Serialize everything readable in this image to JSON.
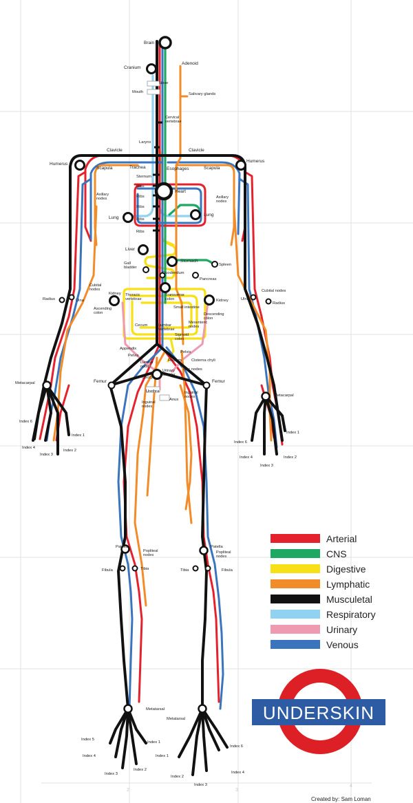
{
  "colors": {
    "arterial": "#e4222d",
    "cns": "#1ea862",
    "digestive": "#f7e017",
    "lymphatic": "#f28c28",
    "muscuskeletal": "#111111",
    "respiratory": "#8fd3f1",
    "urinary": "#ee9ab0",
    "venous": "#3a74bd",
    "roundel_ring": "#dd1f26",
    "roundel_bar": "#2d5ca5"
  },
  "legend": [
    {
      "label": "Arterial",
      "color": "#e4222d"
    },
    {
      "label": "CNS",
      "color": "#1ea862"
    },
    {
      "label": "Digestive",
      "color": "#f7e017"
    },
    {
      "label": "Lymphatic",
      "color": "#f28c28"
    },
    {
      "label": "Musculetal",
      "color": "#111111"
    },
    {
      "label": "Respiratory",
      "color": "#8fd3f1"
    },
    {
      "label": "Urinary",
      "color": "#ee9ab0"
    },
    {
      "label": "Venous",
      "color": "#3a74bd"
    }
  ],
  "logo": {
    "text": "UNDERSKIN"
  },
  "credit": "Created by: Sam Loman",
  "grid_numbers": [
    "2",
    "3",
    "4"
  ],
  "labels": {
    "brain": "Brain",
    "cranium": "Cranium",
    "adenoid": "Adenoid",
    "nose": "Nose",
    "mouth": "Mouth",
    "salivary": "Salivary glands",
    "cervical": "Cervical vertebrae",
    "larynx": "Larynx",
    "clavicle_l": "Clavicle",
    "clavicle_r": "Clavicle",
    "humerus_l": "Humerus",
    "humerus_r": "Humerus",
    "scapula_l": "Scapula",
    "scapula_r": "Scapula",
    "trachea": "Trachea",
    "esophagus": "Esophages",
    "sternum": "Sternum",
    "heart": "Heart",
    "ribs1": "Ribs",
    "ribs2": "Ribs",
    "ribs3": "Ribs",
    "ribs4": "Ribs",
    "ribs5": "Ribs",
    "axillary_l": "Axillary nodes",
    "axillary_r": "Axillary nodes",
    "lung_l": "Lung",
    "lung_r": "Lung",
    "liver": "Liver",
    "gall": "Gall bladder",
    "stomach": "Stomach",
    "spleen": "Spleen",
    "duodenum": "Duodendum",
    "pancreas": "Pancreas",
    "cubital_l": "Cubital nodes",
    "cubital_r": "Cubital nodes",
    "radius_l": "Radius",
    "radius_r": "Radius",
    "ulna_l": "Ulna",
    "ulna_r": "Ulna",
    "kidney_l": "Kidney",
    "kidney_r": "Kidney",
    "thoracic": "Thoracic vertebrae",
    "transverse": "Transverse colon",
    "small_int": "Small intestine",
    "ascending": "Ascending colon",
    "descending": "Descending colon",
    "mesenteric": "Mesenteric nodes",
    "cecum": "Cecum",
    "lumbar_v": "Lumbar vertebrae",
    "appendix": "Appendix",
    "sigmoid": "Sigmoid colon",
    "pelvis_l": "Pelvis",
    "pelvis_r": "Pelvis",
    "rectum": "Rectum",
    "cisterna": "Cisterna chyli",
    "lumbar_n": "Lumbar nodes",
    "iliac": "Iliac nodes",
    "coccyx": "Coccyx",
    "urinary_b": "Urinary bladder",
    "metacarpal_l": "Metacarpal",
    "metacarpal_r": "Metacarpal",
    "femur_l": "Femur",
    "femur_r": "Femur",
    "urethra": "Urethra",
    "anus": "Anus",
    "inguinal_l": "Inguinal nodes",
    "inguinal_r": "Inguinal nodes",
    "hl_index6": "Index 6",
    "hl_index1": "Index 1",
    "hl_index4": "Index 4",
    "hl_index3": "Index 3",
    "hl_index2": "Index 2",
    "hr_index6": "Index 6",
    "hr_index1": "Index 1",
    "hr_index4": "Index 4",
    "hr_index2": "Index 2",
    "hr_index3": "Index 3",
    "patella_l": "Patella",
    "patella_r": "Patella",
    "popliteal_l": "Popliteal nodes",
    "popliteal_r": "Popliteal nodes",
    "fibula_l": "Fibula",
    "fibula_r": "Fibula",
    "tibia_l": "Tibia",
    "tibia_r": "Tibia",
    "metatarsal_l": "Metatarsal",
    "metatarsal_r": "Metatarsal",
    "fl_index5": "Index 5",
    "fl_index1": "Index 1",
    "fl_index4": "Index 4",
    "fl_index3": "Index 3",
    "fl_index2": "Index 2",
    "fr_index6": "Index 6",
    "fr_index1": "Index 1",
    "fr_index4": "Index 4",
    "fr_index2": "Index 2",
    "fr_index3": "Index 3"
  }
}
